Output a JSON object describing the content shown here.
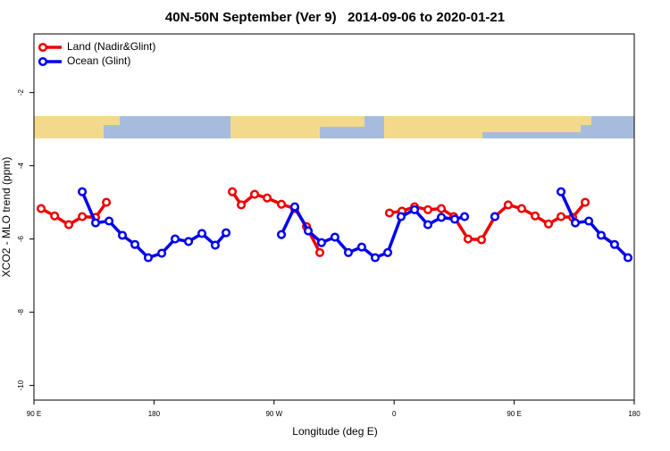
{
  "chart_data": {
    "type": "line",
    "title": "40N-50N September (Ver 9)   2014-09-06 to 2020-01-21",
    "x_label": "Longitude (deg E)",
    "y_label": "XCO2 - MLO trend (ppm)",
    "xlim": [
      90,
      540
    ],
    "ylim": [
      -10.4,
      -0.4
    ],
    "xticks": [
      {
        "value": 90,
        "label": "90 E"
      },
      180,
      {
        "value": 270,
        "label": "90 W"
      },
      {
        "value": 360,
        "label": "0"
      },
      {
        "value": 450,
        "label": "90 E"
      },
      {
        "value": 540,
        "label": "180"
      }
    ],
    "yticks": [
      -10,
      -8,
      -6,
      -4,
      -2
    ],
    "legend": "top-left",
    "series": [
      {
        "name": "Land (Nadir&Glint)",
        "color": "#ee0000",
        "x": [
          95.4,
          105.5,
          116.1,
          126.2,
          136.2,
          144.3,
          null,
          238.7,
          245.4,
          255.4,
          264.8,
          275.5,
          285.5,
          294.3,
          304.3,
          null,
          356.5,
          365.9,
          375.3,
          385.3,
          395.4,
          404.7,
          415.4,
          425.5,
          435.5,
          445.5,
          455.6,
          465.7,
          475.7,
          485.1,
          493.8,
          503.2
        ],
        "values": [
          -5.17,
          -5.37,
          -5.61,
          -5.39,
          -5.41,
          -5.0,
          null,
          -4.71,
          -5.07,
          -4.78,
          -4.88,
          -5.05,
          -5.17,
          -5.66,
          -6.37,
          null,
          -5.29,
          -5.24,
          -5.12,
          -5.2,
          -5.17,
          -5.39,
          -6.0,
          -6.02,
          -5.39,
          -5.07,
          -5.17,
          -5.37,
          -5.59,
          -5.39,
          -5.41,
          -5.0
        ]
      },
      {
        "name": "Ocean (Glint)",
        "color": "#0000ee",
        "x": [
          126.2,
          136.2,
          146.3,
          156.3,
          165.7,
          175.7,
          185.8,
          195.8,
          205.9,
          215.9,
          225.9,
          234,
          null,
          275.5,
          285.5,
          295.6,
          305.6,
          315.6,
          325.7,
          335.7,
          345.8,
          355.2,
          365.2,
          375.3,
          385.3,
          395.4,
          405.4,
          412.8,
          null,
          435.5,
          null,
          485.1,
          495.8,
          505.9,
          515.2,
          525.2,
          535.3
        ],
        "values": [
          -4.71,
          -5.56,
          -5.51,
          -5.9,
          -6.15,
          -6.51,
          -6.39,
          -6.0,
          -6.07,
          -5.85,
          -6.17,
          -5.83,
          null,
          -5.88,
          -5.12,
          -5.78,
          -6.1,
          -5.95,
          -6.37,
          -6.22,
          -6.51,
          -6.37,
          -5.39,
          -5.2,
          -5.61,
          -5.41,
          -5.46,
          -5.39,
          null,
          -5.39,
          null,
          -4.71,
          -5.56,
          -5.51,
          -5.9,
          -6.15,
          -6.51
        ]
      }
    ]
  }
}
